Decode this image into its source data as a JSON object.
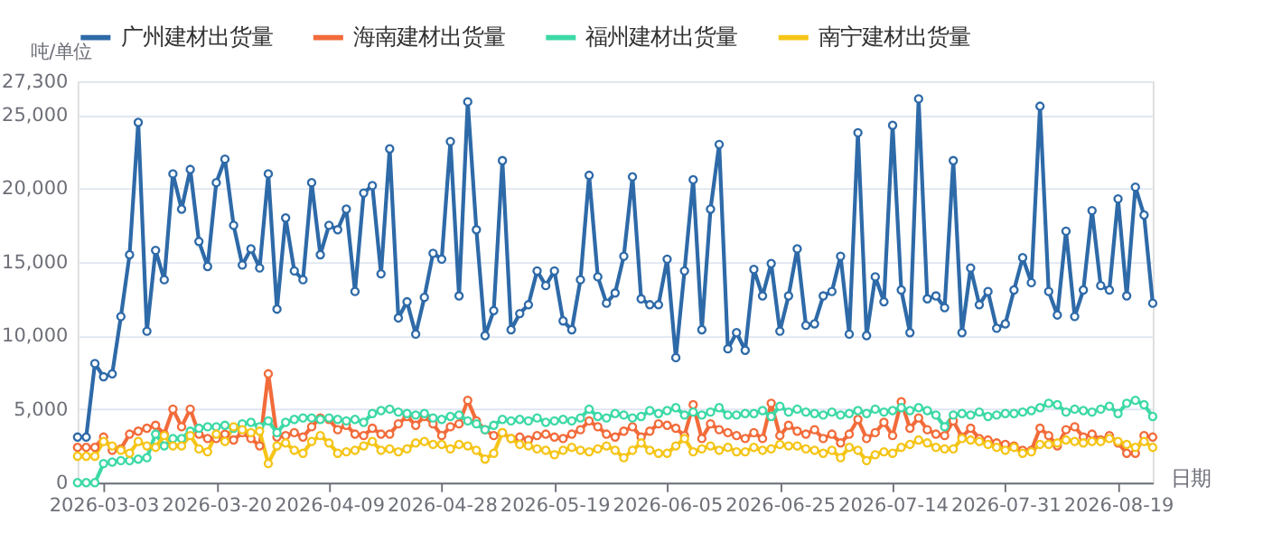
{
  "chart_data": {
    "type": "line",
    "ylabel": "吨/单位",
    "xlabel": "日期",
    "categories": [
      null,
      null,
      null,
      "2026-03-03",
      null,
      null,
      null,
      null,
      null,
      null,
      null,
      null,
      null,
      null,
      null,
      null,
      "2026-03-20",
      null,
      null,
      null,
      null,
      null,
      null,
      null,
      null,
      null,
      null,
      null,
      null,
      "2026-04-09",
      null,
      null,
      null,
      null,
      null,
      null,
      null,
      null,
      null,
      null,
      null,
      null,
      "2026-04-28",
      null,
      null,
      null,
      null,
      null,
      null,
      null,
      null,
      null,
      null,
      null,
      null,
      "2026-05-19",
      null,
      null,
      null,
      null,
      null,
      null,
      null,
      null,
      null,
      null,
      null,
      null,
      "2026-06-05",
      null,
      null,
      null,
      null,
      null,
      null,
      null,
      null,
      null,
      null,
      null,
      null,
      "2026-06-25",
      null,
      null,
      null,
      null,
      null,
      null,
      null,
      null,
      null,
      null,
      null,
      null,
      "2026-07-14",
      null,
      null,
      null,
      null,
      null,
      null,
      null,
      null,
      null,
      null,
      null,
      null,
      "2026-07-31",
      null,
      null,
      null,
      null,
      null,
      null,
      null,
      null,
      null,
      null,
      null,
      null,
      "2026-08-19",
      null,
      null,
      null,
      null
    ],
    "series": [
      {
        "name": "广州建材出货量",
        "color": "#2e6aa8",
        "values": [
          3100,
          3100,
          8100,
          7200,
          7400,
          11300,
          15500,
          24500,
          10300,
          15800,
          13800,
          21000,
          18600,
          21300,
          16400,
          14700,
          20400,
          22000,
          17500,
          14800,
          15900,
          14600,
          21000,
          11800,
          18000,
          14400,
          13800,
          20400,
          15500,
          17500,
          17200,
          18600,
          13000,
          19700,
          20200,
          14200,
          22700,
          11200,
          12300,
          10100,
          12600,
          15600,
          15200,
          23200,
          12700,
          25900,
          17200,
          10000,
          11700,
          21900,
          10400,
          11500,
          12100,
          14400,
          13400,
          14400,
          11000,
          10400,
          13800,
          20900,
          14000,
          12200,
          12900,
          15400,
          20800,
          12500,
          12100,
          12100,
          15200,
          8500,
          14400,
          20600,
          10400,
          18600,
          23000,
          9100,
          10200,
          9000,
          14500,
          12700,
          14900,
          10300,
          12700,
          15900,
          10700,
          10800,
          12700,
          13000,
          15400,
          10100,
          23800,
          10000,
          14000,
          12300,
          24300,
          13100,
          10200,
          26100,
          12500,
          12700,
          11900,
          21900,
          10200,
          14600,
          12100,
          13000,
          10500,
          10800,
          13100,
          15300,
          13600,
          25600,
          13000,
          11400,
          17100,
          11300,
          13100,
          18500,
          13400,
          13100,
          19300,
          12700,
          20100,
          18200,
          12200
        ]
      },
      {
        "name": "海南建材出货量",
        "color": "#f26b3a",
        "values": [
          2400,
          2400,
          2400,
          3100,
          2200,
          2300,
          3300,
          3500,
          3700,
          3900,
          3300,
          5000,
          3800,
          5000,
          3300,
          3000,
          3000,
          3300,
          2900,
          3400,
          3000,
          2500,
          7400,
          3100,
          3200,
          3400,
          3100,
          3800,
          4400,
          4300,
          3600,
          3900,
          3300,
          3200,
          3700,
          3300,
          3300,
          4000,
          4500,
          3900,
          4500,
          4000,
          3200,
          3800,
          4000,
          5600,
          4200,
          3600,
          3200,
          3400,
          3000,
          3100,
          2900,
          3200,
          3300,
          3100,
          3000,
          3300,
          3600,
          4200,
          3800,
          3300,
          3100,
          3500,
          3800,
          3100,
          3500,
          4000,
          3900,
          3700,
          3200,
          5300,
          3000,
          4000,
          3600,
          3400,
          3200,
          3000,
          3400,
          3000,
          5400,
          3200,
          3900,
          3500,
          3300,
          3600,
          3000,
          3300,
          2700,
          3300,
          4300,
          3000,
          3400,
          4100,
          3200,
          5500,
          3700,
          4400,
          3600,
          3300,
          3200,
          4200,
          3100,
          3700,
          3000,
          2900,
          2700,
          2600,
          2500,
          2200,
          2200,
          3700,
          3200,
          2500,
          3600,
          3800,
          3100,
          3300,
          2900,
          3200,
          2700,
          2000,
          2000,
          3200,
          3100
        ]
      },
      {
        "name": "福州建材出货量",
        "color": "#3dd9a6",
        "values": [
          0,
          0,
          0,
          1300,
          1400,
          1500,
          1500,
          1600,
          1700,
          3300,
          2500,
          3000,
          3000,
          3500,
          3700,
          3800,
          3800,
          3900,
          3700,
          4000,
          4100,
          3800,
          4200,
          3400,
          4100,
          4300,
          4400,
          4400,
          4300,
          4400,
          4300,
          4200,
          4300,
          4100,
          4700,
          4900,
          5000,
          4800,
          4700,
          4600,
          4700,
          4400,
          4300,
          4500,
          4600,
          4200,
          4000,
          3600,
          3900,
          4300,
          4200,
          4300,
          4200,
          4400,
          4100,
          4200,
          4300,
          4200,
          4400,
          5000,
          4500,
          4400,
          4700,
          4600,
          4400,
          4500,
          4900,
          4700,
          4900,
          5100,
          4600,
          4800,
          4600,
          4800,
          5100,
          4600,
          4600,
          4700,
          4700,
          4900,
          4500,
          5200,
          4800,
          5000,
          4800,
          4700,
          4600,
          4800,
          4600,
          4700,
          4900,
          4700,
          5000,
          4800,
          4900,
          5100,
          4900,
          5100,
          4900,
          4600,
          3800,
          4600,
          4700,
          4600,
          4800,
          4500,
          4600,
          4700,
          4700,
          4800,
          4900,
          5100,
          5400,
          5300,
          4800,
          5000,
          4900,
          4800,
          5000,
          5200,
          4700,
          5400,
          5600,
          5300,
          4500
        ]
      },
      {
        "name": "南宁建材出货量",
        "color": "#f5c518",
        "values": [
          1800,
          1800,
          1800,
          2800,
          2500,
          2200,
          2000,
          2800,
          2500,
          2400,
          3200,
          2500,
          2500,
          3200,
          2300,
          2100,
          3300,
          2800,
          3800,
          3600,
          3400,
          3500,
          1300,
          2500,
          2700,
          2200,
          2000,
          2800,
          3200,
          2700,
          2000,
          2100,
          2200,
          2500,
          2800,
          2200,
          2300,
          2100,
          2300,
          2700,
          2800,
          2600,
          2600,
          2300,
          2600,
          2500,
          2200,
          1600,
          2000,
          3400,
          3000,
          2600,
          2500,
          2300,
          2200,
          1900,
          2200,
          2400,
          2200,
          2100,
          2300,
          2500,
          2200,
          1700,
          2200,
          2700,
          2200,
          2000,
          2000,
          2500,
          3000,
          2100,
          2300,
          2500,
          2200,
          2400,
          2100,
          2100,
          2400,
          2200,
          2300,
          2600,
          2500,
          2500,
          2300,
          2200,
          2000,
          2200,
          1700,
          2400,
          2200,
          1500,
          1900,
          2100,
          2000,
          2400,
          2600,
          2900,
          2700,
          2400,
          2300,
          2300,
          3000,
          2900,
          2800,
          2600,
          2400,
          2200,
          2400,
          2000,
          2100,
          2600,
          2600,
          2700,
          2900,
          2800,
          2700,
          2800,
          2800,
          3000,
          2800,
          2600,
          2400,
          2800,
          2400
        ]
      }
    ],
    "ylim": [
      0,
      27300
    ],
    "yticks": [
      0,
      {
        "value": 5000,
        "label": "5,000"
      },
      {
        "value": 10000,
        "label": "10,000"
      },
      {
        "value": 15000,
        "label": "15,000"
      },
      {
        "value": 20000,
        "label": "20,000"
      },
      {
        "value": 25000,
        "label": "25,000"
      },
      {
        "value": 27300,
        "label": "27,300"
      }
    ],
    "grid": "y",
    "legend": "top",
    "marker": "circle",
    "line_style": "solid"
  }
}
